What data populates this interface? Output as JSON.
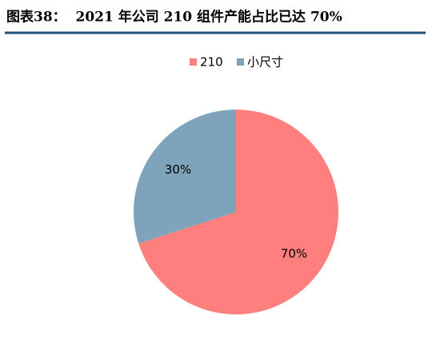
{
  "chart_data": {
    "type": "pie",
    "title": "图表38：  2021 年公司 210 组件产能占比已达 70%",
    "categories": [
      "210",
      "小尺寸"
    ],
    "values": [
      70,
      30
    ],
    "value_labels": [
      "70%",
      "30%"
    ],
    "colors": [
      "#ff7f7f",
      "#7fa3bb"
    ],
    "legend": "top"
  }
}
